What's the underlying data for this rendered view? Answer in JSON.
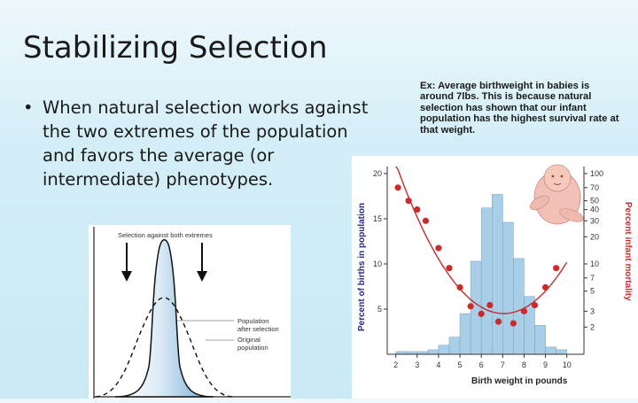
{
  "slide": {
    "title": "Stabilizing Selection",
    "bullet_symbol": "•",
    "bullet_text": "When natural selection works against the two extremes of the population and favors the average (or intermediate) phenotypes.",
    "example_text": "Ex: Average birthweight in babies is around 7lbs. This is because natural selection has shown that our infant population has the highest survival rate at that weight."
  },
  "left_figure": {
    "label_top": "Selection against both extremes",
    "label_after_1": "Population",
    "label_after_2": "after selection",
    "label_original_1": "Original",
    "label_original_2": "population",
    "fill_color": "#7fb7d9"
  },
  "chart_data": {
    "type": "bar",
    "xlabel": "Birth weight in pounds",
    "ylabel": "Percent of births in population",
    "ylabel_right": "Percent infant mortality",
    "x_ticks": [
      "2",
      "3",
      "4",
      "5",
      "6",
      "7",
      "8",
      "9",
      "10"
    ],
    "y_ticks": [
      "5",
      "10",
      "15",
      "20"
    ],
    "y_right_ticks": [
      "2",
      "3",
      "5",
      "7",
      "10",
      "20",
      "30",
      "40",
      "50",
      "70",
      "100"
    ],
    "xlim": [
      2,
      10.5
    ],
    "ylim": [
      0,
      20
    ],
    "histogram": {
      "color": "#a9cfe8",
      "bins": [
        {
          "x0": 2.0,
          "x1": 2.5,
          "value": 0.3
        },
        {
          "x0": 2.5,
          "x1": 3.0,
          "value": 0.3
        },
        {
          "x0": 3.0,
          "x1": 3.5,
          "value": 0.3
        },
        {
          "x0": 3.5,
          "x1": 4.0,
          "value": 0.5
        },
        {
          "x0": 4.0,
          "x1": 4.5,
          "value": 1.0
        },
        {
          "x0": 4.5,
          "x1": 5.0,
          "value": 1.9
        },
        {
          "x0": 5.0,
          "x1": 5.5,
          "value": 4.5
        },
        {
          "x0": 5.5,
          "x1": 6.0,
          "value": 10.3
        },
        {
          "x0": 6.0,
          "x1": 6.5,
          "value": 16.2
        },
        {
          "x0": 6.5,
          "x1": 7.0,
          "value": 17.7
        },
        {
          "x0": 7.0,
          "x1": 7.5,
          "value": 14.6
        },
        {
          "x0": 7.5,
          "x1": 8.0,
          "value": 10.6
        },
        {
          "x0": 8.0,
          "x1": 8.5,
          "value": 6.4
        },
        {
          "x0": 8.5,
          "x1": 9.0,
          "value": 3.2
        },
        {
          "x0": 9.0,
          "x1": 9.5,
          "value": 0.8
        },
        {
          "x0": 9.5,
          "x1": 10.0,
          "value": 0.5
        }
      ]
    },
    "mortality": {
      "color": "#cc2a2a",
      "points": [
        {
          "x": 2.1,
          "y": 70
        },
        {
          "x": 2.6,
          "y": 50
        },
        {
          "x": 3.0,
          "y": 40
        },
        {
          "x": 3.4,
          "y": 30
        },
        {
          "x": 4.0,
          "y": 15
        },
        {
          "x": 4.5,
          "y": 9
        },
        {
          "x": 5.0,
          "y": 5.5
        },
        {
          "x": 5.5,
          "y": 3.4
        },
        {
          "x": 6.0,
          "y": 2.8
        },
        {
          "x": 6.4,
          "y": 3.5
        },
        {
          "x": 6.8,
          "y": 2.3
        },
        {
          "x": 7.5,
          "y": 2.2
        },
        {
          "x": 8.0,
          "y": 3.0
        },
        {
          "x": 8.5,
          "y": 3.5
        },
        {
          "x": 9.0,
          "y": 5.5
        },
        {
          "x": 9.5,
          "y": 9
        }
      ]
    },
    "infant_image": "fetus-illustration"
  }
}
